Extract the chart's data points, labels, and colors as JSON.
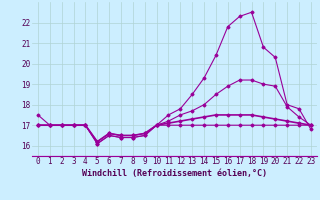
{
  "hours": [
    0,
    1,
    2,
    3,
    4,
    5,
    6,
    7,
    8,
    9,
    10,
    11,
    12,
    13,
    14,
    15,
    16,
    17,
    18,
    19,
    20,
    21,
    22,
    23
  ],
  "line1": [
    17.5,
    17.0,
    17.0,
    17.0,
    17.0,
    16.1,
    16.5,
    16.4,
    16.4,
    16.5,
    17.0,
    17.5,
    17.8,
    18.5,
    19.3,
    20.4,
    21.8,
    22.3,
    22.5,
    20.8,
    20.3,
    18.0,
    17.8,
    16.8
  ],
  "line2": [
    17.0,
    17.0,
    17.0,
    17.0,
    17.0,
    16.1,
    16.5,
    16.4,
    16.4,
    16.5,
    17.0,
    17.2,
    17.5,
    17.7,
    18.0,
    18.5,
    18.9,
    19.2,
    19.2,
    19.0,
    18.9,
    17.9,
    17.4,
    17.0
  ],
  "line3": [
    17.0,
    17.0,
    17.0,
    17.0,
    17.0,
    16.2,
    16.6,
    16.5,
    16.5,
    16.6,
    17.0,
    17.1,
    17.2,
    17.3,
    17.4,
    17.5,
    17.5,
    17.5,
    17.5,
    17.4,
    17.3,
    17.2,
    17.1,
    17.0
  ],
  "line4": [
    17.0,
    17.0,
    17.0,
    17.0,
    17.0,
    16.2,
    16.6,
    16.5,
    16.5,
    16.6,
    17.0,
    17.0,
    17.0,
    17.0,
    17.0,
    17.0,
    17.0,
    17.0,
    17.0,
    17.0,
    17.0,
    17.0,
    17.0,
    17.0
  ],
  "ylim": [
    15.5,
    23.0
  ],
  "yticks": [
    16,
    17,
    18,
    19,
    20,
    21,
    22
  ],
  "line_color": "#990099",
  "bg_color": "#cceeff",
  "grid_color": "#b0d4d4",
  "xlabel": "Windchill (Refroidissement éolien,°C)",
  "tick_fontsize": 5.5,
  "label_fontsize": 6.0
}
